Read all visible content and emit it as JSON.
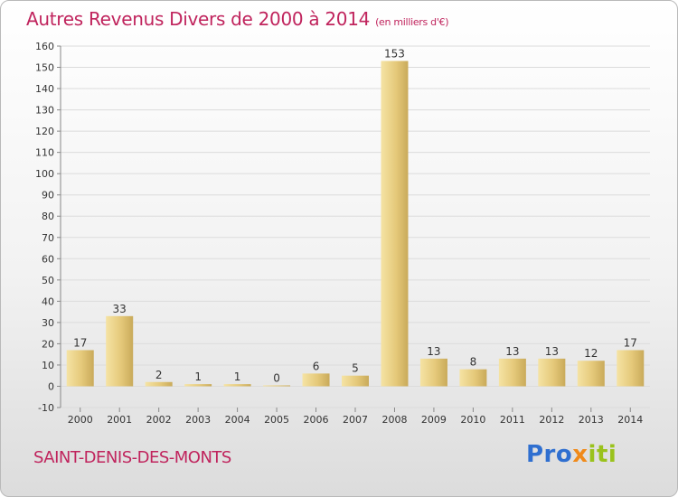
{
  "chart_data": {
    "type": "bar",
    "title": "Autres Revenus Divers de 2000 à 2014",
    "subtitle": "(en milliers d'€)",
    "categories": [
      "2000",
      "2001",
      "2002",
      "2003",
      "2004",
      "2005",
      "2006",
      "2007",
      "2008",
      "2009",
      "2010",
      "2011",
      "2012",
      "2013",
      "2014"
    ],
    "values": [
      17,
      33,
      2,
      1,
      1,
      0,
      6,
      5,
      153,
      13,
      8,
      13,
      13,
      12,
      17
    ],
    "ylim": [
      -10,
      160
    ],
    "yticks": [
      -10,
      0,
      10,
      20,
      30,
      40,
      50,
      60,
      70,
      80,
      90,
      100,
      110,
      120,
      130,
      140,
      150,
      160
    ],
    "grid": true,
    "bar_color": "#e8cf7e"
  },
  "footer": {
    "commune": "SAINT-DENIS-DES-MONTS",
    "logo": {
      "p1": "Pro",
      "p2": "x",
      "p3": "iti"
    }
  }
}
